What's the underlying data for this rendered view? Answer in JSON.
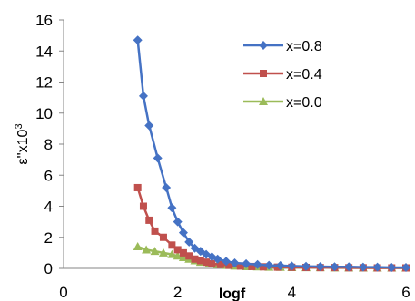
{
  "chart_data": {
    "type": "line",
    "title": "",
    "xlabel": "logf",
    "ylabel": {
      "base": "ε''x10",
      "sup": "3"
    },
    "xlim": [
      0,
      6
    ],
    "ylim": [
      0,
      16
    ],
    "xticks": [
      0,
      2,
      4,
      6
    ],
    "yticks": [
      0,
      2,
      4,
      6,
      8,
      10,
      12,
      14,
      16
    ],
    "grid": false,
    "legend_position": "top-right",
    "series": [
      {
        "name": "x=0.8",
        "color": "#4572C4",
        "marker": "diamond",
        "x": [
          1.3,
          1.4,
          1.5,
          1.65,
          1.8,
          1.9,
          2.0,
          2.1,
          2.2,
          2.3,
          2.4,
          2.5,
          2.6,
          2.7,
          2.85,
          3.0,
          3.2,
          3.4,
          3.6,
          3.8,
          4.0,
          4.25,
          4.5,
          4.75,
          5.0,
          5.25,
          5.5,
          5.75,
          6.0
        ],
        "y": [
          14.7,
          11.1,
          9.2,
          7.1,
          5.2,
          3.9,
          3.0,
          2.3,
          1.7,
          1.3,
          1.1,
          0.9,
          0.75,
          0.6,
          0.45,
          0.35,
          0.3,
          0.25,
          0.2,
          0.18,
          0.15,
          0.13,
          0.12,
          0.1,
          0.1,
          0.08,
          0.08,
          0.06,
          0.06
        ]
      },
      {
        "name": "x=0.4",
        "color": "#C0504D",
        "marker": "square",
        "x": [
          1.3,
          1.4,
          1.5,
          1.6,
          1.75,
          1.9,
          2.0,
          2.1,
          2.2,
          2.3,
          2.4,
          2.5,
          2.6,
          2.75,
          2.9,
          3.1,
          3.3,
          3.5,
          3.75,
          4.0,
          4.25,
          4.5,
          4.75,
          5.0,
          5.25,
          5.5,
          5.75,
          6.0
        ],
        "y": [
          5.2,
          4.0,
          3.1,
          2.4,
          2.0,
          1.5,
          1.2,
          1.0,
          0.8,
          0.6,
          0.5,
          0.4,
          0.3,
          0.25,
          0.2,
          0.15,
          0.12,
          0.1,
          0.08,
          0.07,
          0.06,
          0.05,
          0.05,
          0.04,
          0.04,
          0.03,
          0.03,
          0.03
        ]
      },
      {
        "name": "x=0.0",
        "color": "#9BBB59",
        "marker": "triangle",
        "x": [
          1.3,
          1.45,
          1.6,
          1.75,
          1.9,
          2.0,
          2.1,
          2.2,
          2.3,
          2.4,
          2.55,
          2.7,
          2.85,
          3.0,
          3.2,
          3.4,
          3.6,
          3.8,
          4.0,
          4.25,
          4.5,
          4.75,
          5.0,
          5.25,
          5.5,
          5.75,
          6.0
        ],
        "y": [
          1.4,
          1.2,
          1.1,
          1.0,
          0.9,
          0.8,
          0.7,
          0.6,
          0.5,
          0.4,
          0.3,
          0.25,
          0.2,
          0.15,
          0.12,
          0.1,
          0.08,
          0.07,
          0.06,
          0.05,
          0.05,
          0.04,
          0.04,
          0.03,
          0.03,
          0.03,
          0.03
        ]
      }
    ]
  }
}
